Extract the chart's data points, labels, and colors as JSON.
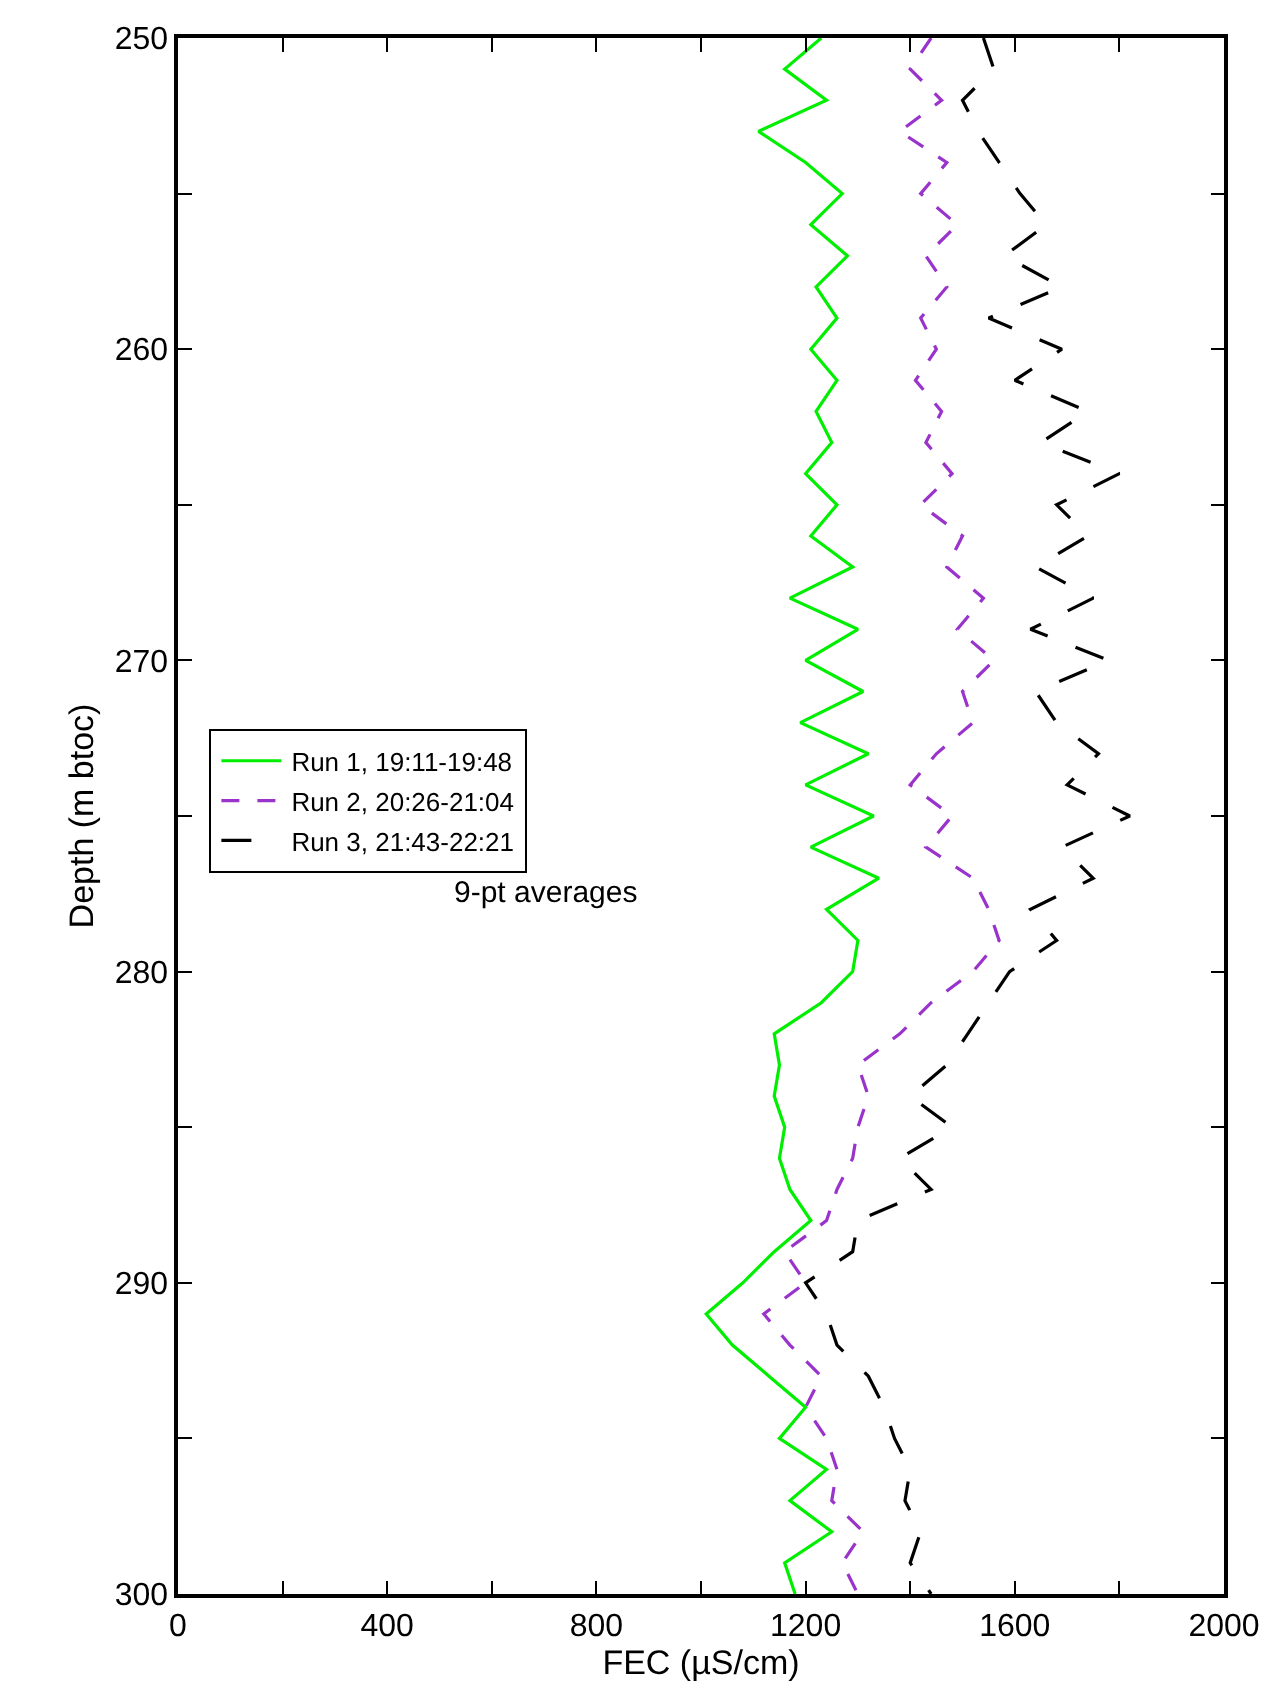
{
  "chart_data": {
    "type": "line",
    "xlabel": "FEC (µS/cm)",
    "ylabel": "Depth (m btoc)",
    "xlim": [
      0,
      2000
    ],
    "ylim": [
      300,
      250
    ],
    "xticks": [
      0,
      {
        "value": 200,
        "label": null
      },
      400,
      {
        "value": 600,
        "label": null
      },
      800,
      {
        "value": 1000,
        "label": null
      },
      1200,
      {
        "value": 1400,
        "label": null
      },
      1600,
      {
        "value": 1800,
        "label": null
      },
      2000
    ],
    "yticks": [
      250,
      {
        "value": 255,
        "label": null
      },
      260,
      {
        "value": 265,
        "label": null
      },
      270,
      {
        "value": 275,
        "label": null
      },
      280,
      {
        "value": 285,
        "label": null
      },
      290,
      {
        "value": 295,
        "label": null
      },
      300
    ],
    "legend": "left",
    "marker": "none",
    "annotations": [
      "9-pt averages"
    ],
    "series": [
      {
        "name": "Run 1, 19:11-19:48",
        "color": "#00ee00",
        "line_style": "solid",
        "x": [
          1230,
          1160,
          1240,
          1110,
          1200,
          1270,
          1210,
          1280,
          1220,
          1260,
          1210,
          1260,
          1220,
          1250,
          1200,
          1260,
          1210,
          1290,
          1170,
          1300,
          1200,
          1310,
          1190,
          1320,
          1200,
          1330,
          1210,
          1340,
          1240,
          1300,
          1290,
          1230,
          1140,
          1150,
          1140,
          1160,
          1150,
          1170,
          1210,
          1140,
          1080,
          1010,
          1060,
          1130,
          1200,
          1150,
          1240,
          1170,
          1250,
          1160,
          1180
        ],
        "values": [
          250,
          251,
          252,
          253,
          254,
          255,
          256,
          257,
          258,
          259,
          260,
          261,
          262,
          263,
          264,
          265,
          266,
          267,
          268,
          269,
          270,
          271,
          272,
          273,
          274,
          275,
          276,
          277,
          278,
          279,
          280,
          281,
          282,
          283,
          284,
          285,
          286,
          287,
          288,
          289,
          290,
          291,
          292,
          293,
          294,
          295,
          296,
          297,
          298,
          299,
          300
        ]
      },
      {
        "name": "Run 2, 20:26-21:04",
        "color": "#9933cc",
        "line_style": "dashed",
        "x": [
          1440,
          1400,
          1460,
          1380,
          1470,
          1420,
          1490,
          1430,
          1470,
          1420,
          1450,
          1410,
          1460,
          1430,
          1480,
          1420,
          1500,
          1470,
          1540,
          1490,
          1560,
          1500,
          1520,
          1450,
          1400,
          1480,
          1430,
          1520,
          1550,
          1570,
          1520,
          1440,
          1380,
          1300,
          1320,
          1300,
          1290,
          1260,
          1240,
          1160,
          1200,
          1120,
          1170,
          1230,
          1200,
          1240,
          1260,
          1250,
          1310,
          1270,
          1300
        ],
        "values": [
          250,
          251,
          252,
          253,
          254,
          255,
          256,
          257,
          258,
          259,
          260,
          261,
          262,
          263,
          264,
          265,
          266,
          267,
          268,
          269,
          270,
          271,
          272,
          273,
          274,
          275,
          276,
          277,
          278,
          279,
          280,
          281,
          282,
          283,
          284,
          285,
          286,
          287,
          288,
          289,
          290,
          291,
          292,
          293,
          294,
          295,
          296,
          297,
          298,
          299,
          300
        ]
      },
      {
        "name": "Run 3, 21:43-22:21",
        "color": "#000000",
        "line_style": "longdash",
        "x": [
          1540,
          1560,
          1500,
          1530,
          1570,
          1610,
          1660,
          1580,
          1690,
          1550,
          1690,
          1600,
          1740,
          1650,
          1800,
          1680,
          1740,
          1640,
          1750,
          1630,
          1780,
          1640,
          1680,
          1760,
          1700,
          1820,
          1690,
          1750,
          1630,
          1680,
          1590,
          1550,
          1510,
          1470,
          1400,
          1480,
          1380,
          1440,
          1300,
          1290,
          1200,
          1240,
          1260,
          1320,
          1350,
          1370,
          1400,
          1390,
          1420,
          1400,
          1440
        ],
        "values": [
          250,
          251,
          252,
          253,
          254,
          255,
          256,
          257,
          258,
          259,
          260,
          261,
          262,
          263,
          264,
          265,
          266,
          267,
          268,
          269,
          270,
          271,
          272,
          273,
          274,
          275,
          276,
          277,
          278,
          279,
          280,
          281,
          282,
          283,
          284,
          285,
          286,
          287,
          288,
          289,
          290,
          291,
          292,
          293,
          294,
          295,
          296,
          297,
          298,
          299,
          300
        ]
      }
    ]
  }
}
